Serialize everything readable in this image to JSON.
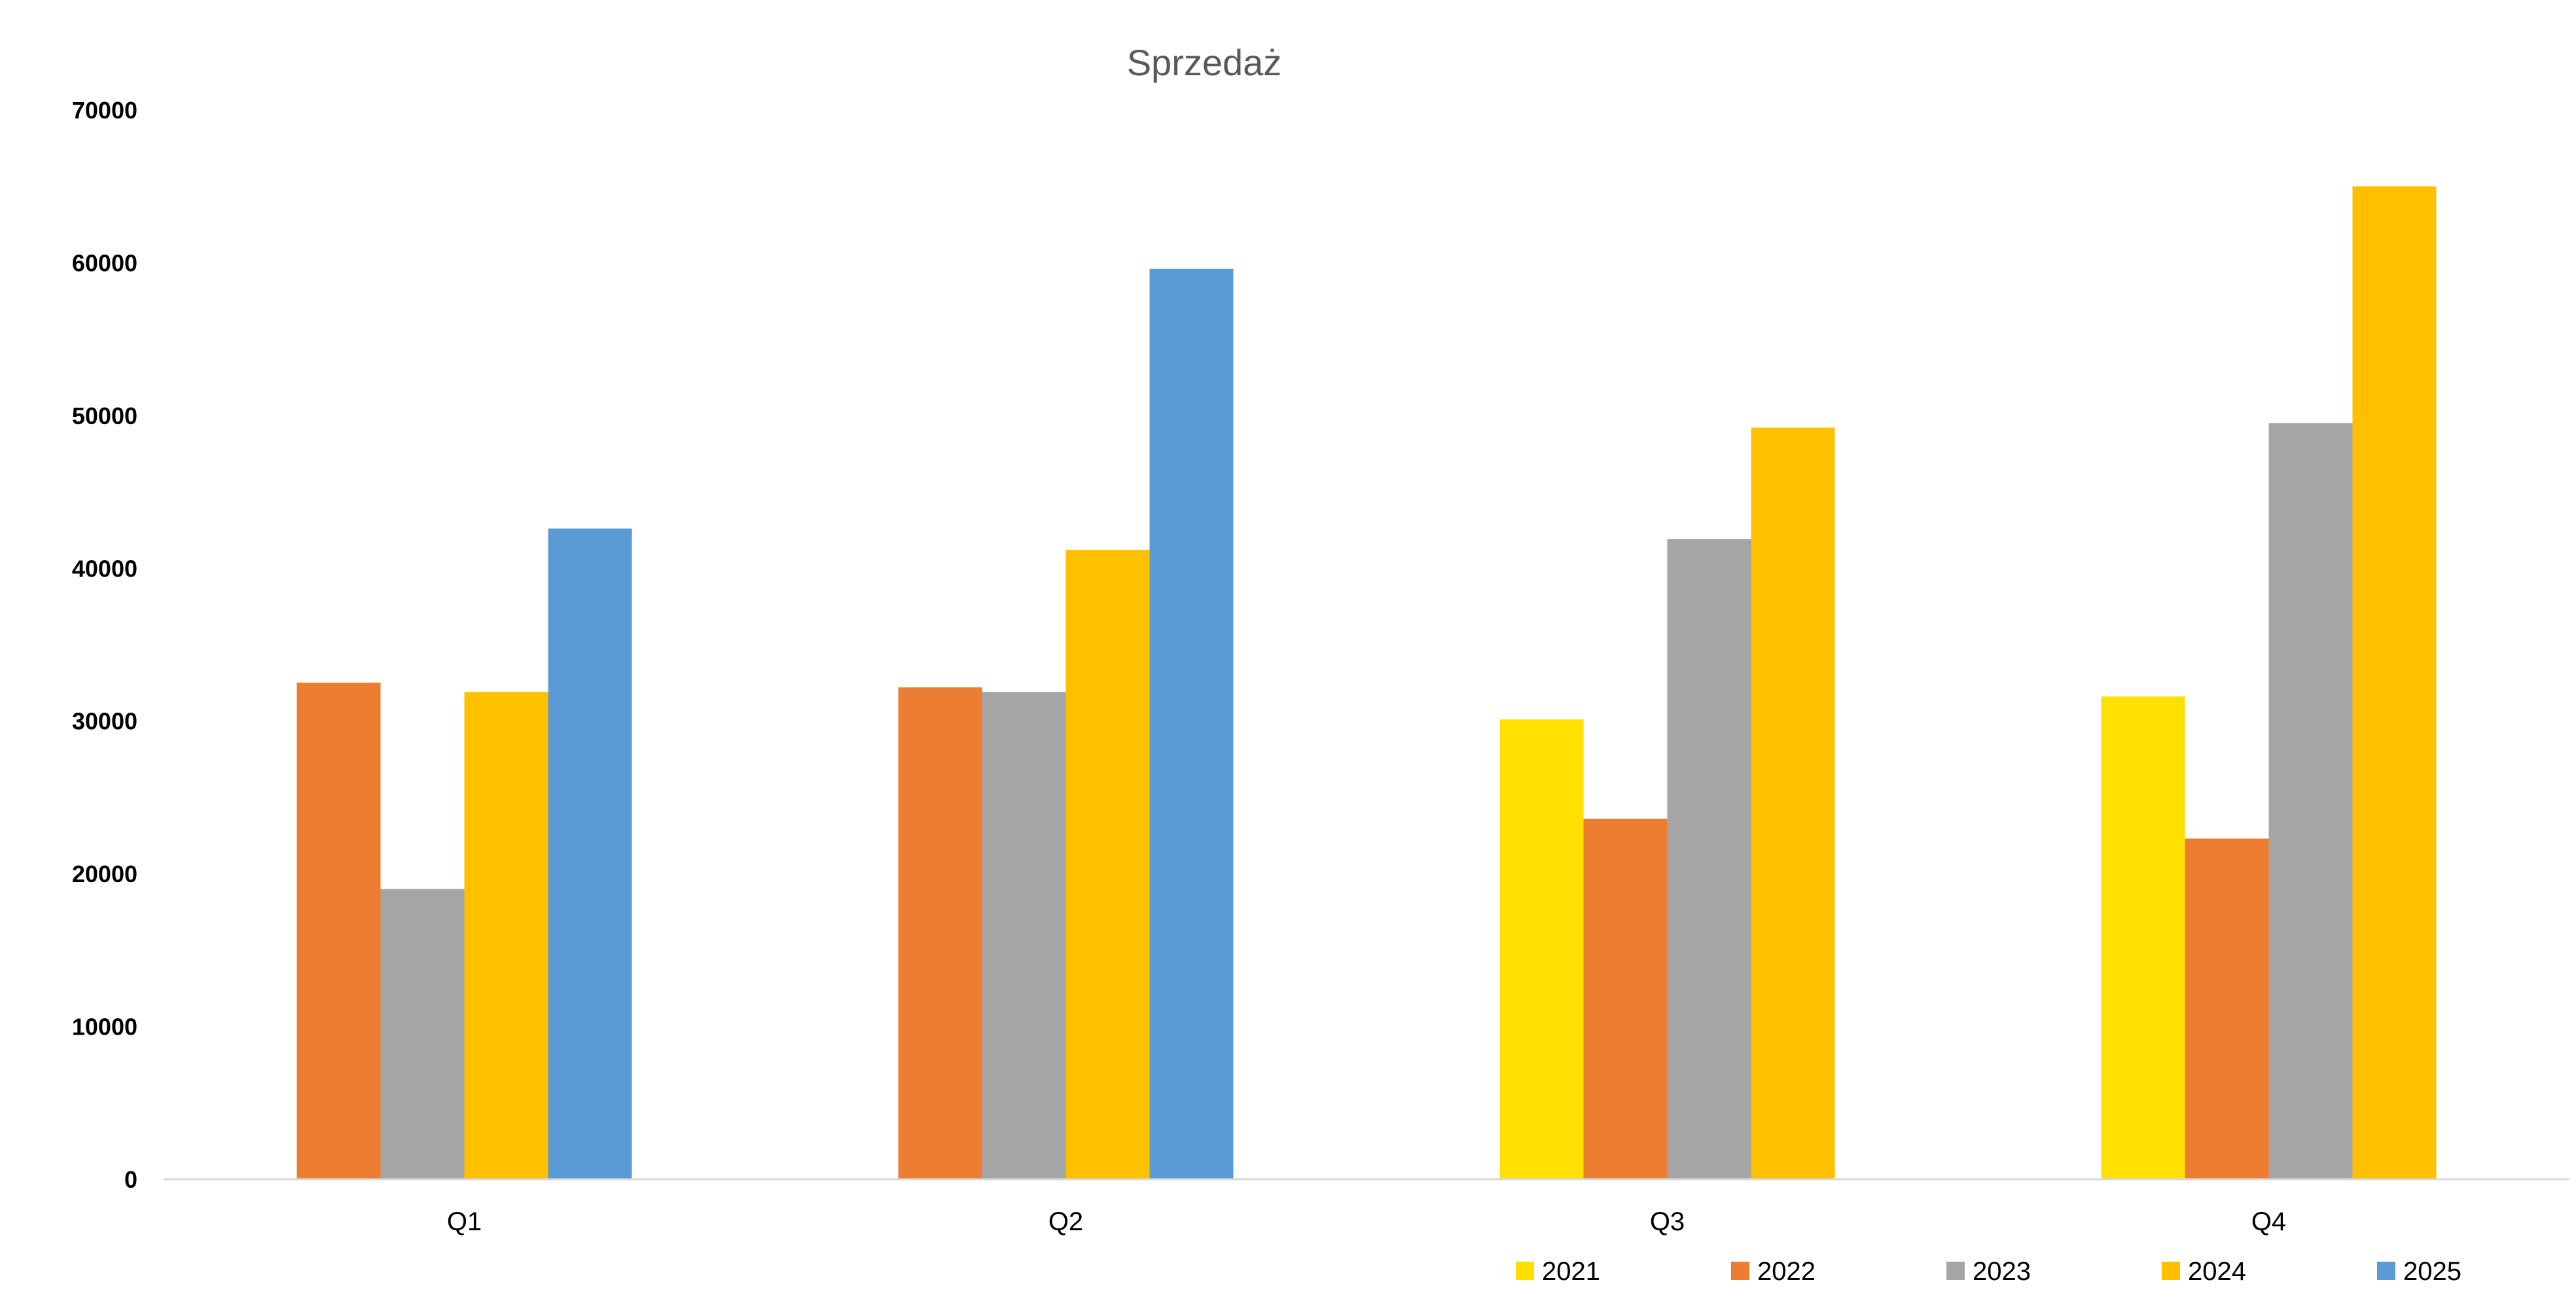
{
  "chart_data": {
    "type": "bar",
    "title": "Sprzedaż",
    "xlabel": "",
    "ylabel": "",
    "categories": [
      "Q1",
      "Q2",
      "Q3",
      "Q4"
    ],
    "ylim": [
      0,
      70000
    ],
    "yticks": [
      0,
      10000,
      20000,
      30000,
      40000,
      50000,
      60000,
      70000
    ],
    "grid": false,
    "legend_position": "bottom-right",
    "series": [
      {
        "name": "2021",
        "color": "#FFE000",
        "values": [
          null,
          null,
          30100,
          31600
        ]
      },
      {
        "name": "2022",
        "color": "#ED7D31",
        "values": [
          32500,
          32200,
          23600,
          22300
        ]
      },
      {
        "name": "2023",
        "color": "#A5A5A5",
        "values": [
          19000,
          31900,
          41900,
          49500
        ]
      },
      {
        "name": "2024",
        "color": "#FFC000",
        "values": [
          31900,
          41200,
          49200,
          65000
        ]
      },
      {
        "name": "2025",
        "color": "#5B9BD5",
        "values": [
          42600,
          59600,
          null,
          null
        ]
      }
    ]
  }
}
